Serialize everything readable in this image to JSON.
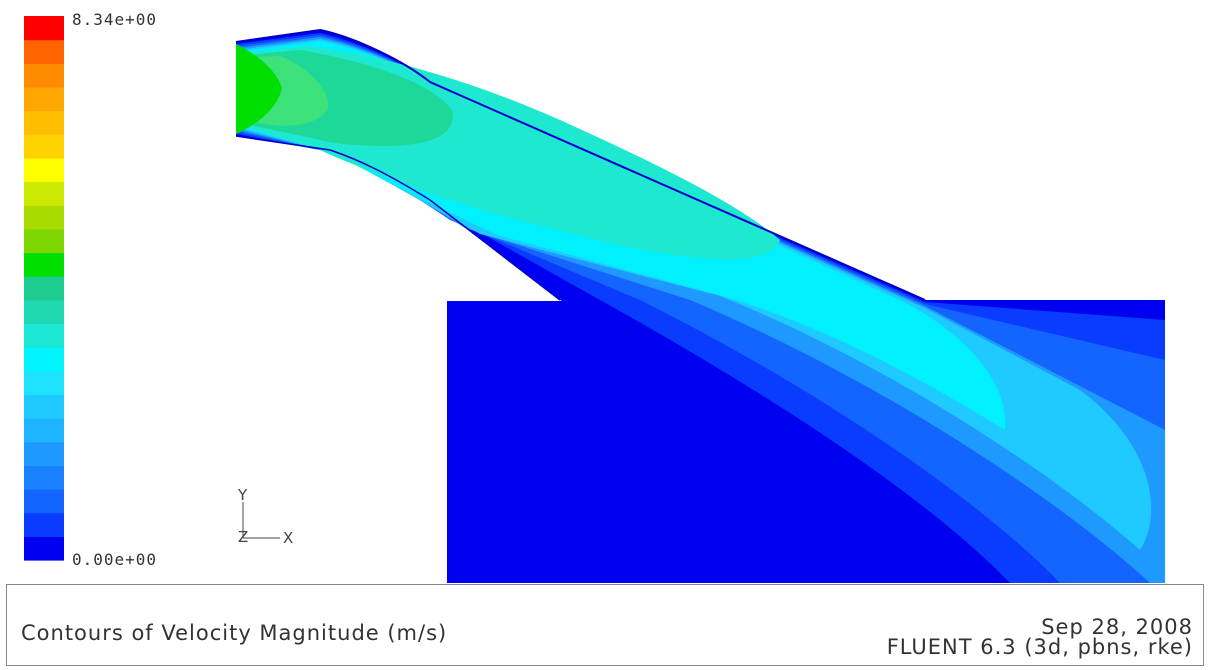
{
  "legend": {
    "max_label": "8.34e+00",
    "min_label": "0.00e+00",
    "levels": 20,
    "colors": [
      "#0000f0",
      "#0a3cff",
      "#1464ff",
      "#1a82ff",
      "#1e9aff",
      "#1eb4ff",
      "#1ecaff",
      "#1ee0ff",
      "#00f5ff",
      "#1ae8d4",
      "#1ed8b4",
      "#1ecc90",
      "#00e000",
      "#7cd800",
      "#a8dc00",
      "#ccea00",
      "#ffff00",
      "#ffd200",
      "#ffbe00",
      "#ffa600",
      "#ff8c00",
      "#ff6400",
      "#ff0000"
    ]
  },
  "triad": {
    "y_label": "Y",
    "z_label": "Z",
    "x_label": "X"
  },
  "footer": {
    "title": "Contours of Velocity Magnitude (m/s)",
    "date": "Sep 28, 2008",
    "solver": "FLUENT 6.3 (3d, pbns, rke)"
  },
  "colors": {
    "deep_blue": "#0000f0",
    "blue2": "#0a3cff",
    "blue3": "#1464ff",
    "blue4": "#1e9aff",
    "cyan1": "#1ecaff",
    "cyan2": "#00f0ff",
    "aqua": "#1ee8d0",
    "teal_green": "#1ed89a",
    "green": "#00e000"
  }
}
